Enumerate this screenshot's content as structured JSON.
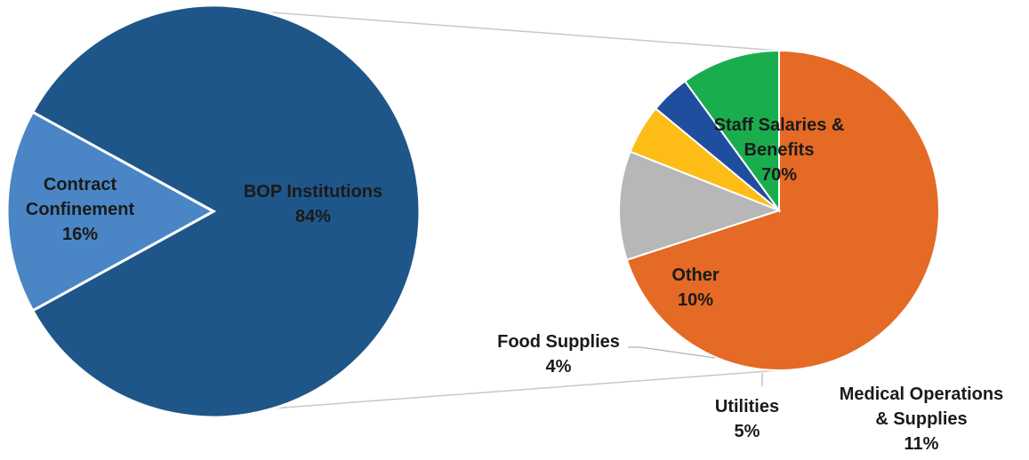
{
  "chart_data": [
    {
      "type": "pie",
      "slices": [
        {
          "label_lines": [
            "BOP Institutions"
          ],
          "value_text": "84%",
          "value": 84,
          "color": "#1f5689"
        },
        {
          "label_lines": [
            "Contract",
            "Confinement"
          ],
          "value_text": "16%",
          "value": 16,
          "color": "#4a86c5"
        }
      ]
    },
    {
      "type": "pie",
      "slices": [
        {
          "label_lines": [
            "Staff Salaries &",
            "Benefits"
          ],
          "value_text": "70%",
          "value": 70,
          "color": "#e46a25"
        },
        {
          "label_lines": [
            "Medical Operations",
            "& Supplies"
          ],
          "value_text": "11%",
          "value": 11,
          "color": "#b7b7b7"
        },
        {
          "label_lines": [
            "Utilities"
          ],
          "value_text": "5%",
          "value": 5,
          "color": "#fdbd16"
        },
        {
          "label_lines": [
            "Food Supplies"
          ],
          "value_text": "4%",
          "value": 4,
          "color": "#1f4e9e"
        },
        {
          "label_lines": [
            "Other"
          ],
          "value_text": "10%",
          "value": 10,
          "color": "#1aad4e"
        }
      ]
    }
  ]
}
